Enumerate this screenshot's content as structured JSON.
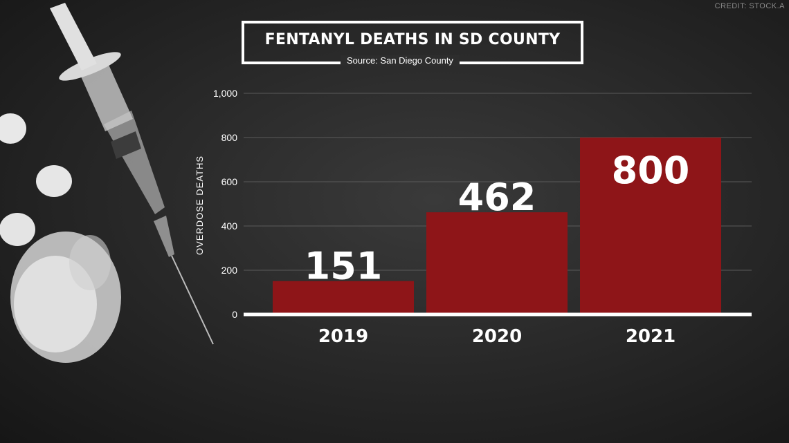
{
  "credit": "CREDIT: STOCK.A",
  "colors": {
    "bar": "#8e1518",
    "axis": "#ffffff",
    "text": "#ffffff",
    "grid": "#5a5a5a"
  },
  "chart_data": {
    "type": "bar",
    "title": "FENTANYL DEATHS IN SD COUNTY",
    "subtitle": "Source: San Diego County",
    "xlabel": "",
    "ylabel": "OVERDOSE DEATHS",
    "categories": [
      "2019",
      "2020",
      "2021"
    ],
    "values": [
      151,
      462,
      800
    ],
    "data_labels": [
      "151",
      "462",
      "800"
    ],
    "ylim": [
      0,
      1000
    ],
    "yticks": [
      "0",
      "200",
      "400",
      "600",
      "800",
      "1,000"
    ],
    "grid": true,
    "legend": "none"
  }
}
